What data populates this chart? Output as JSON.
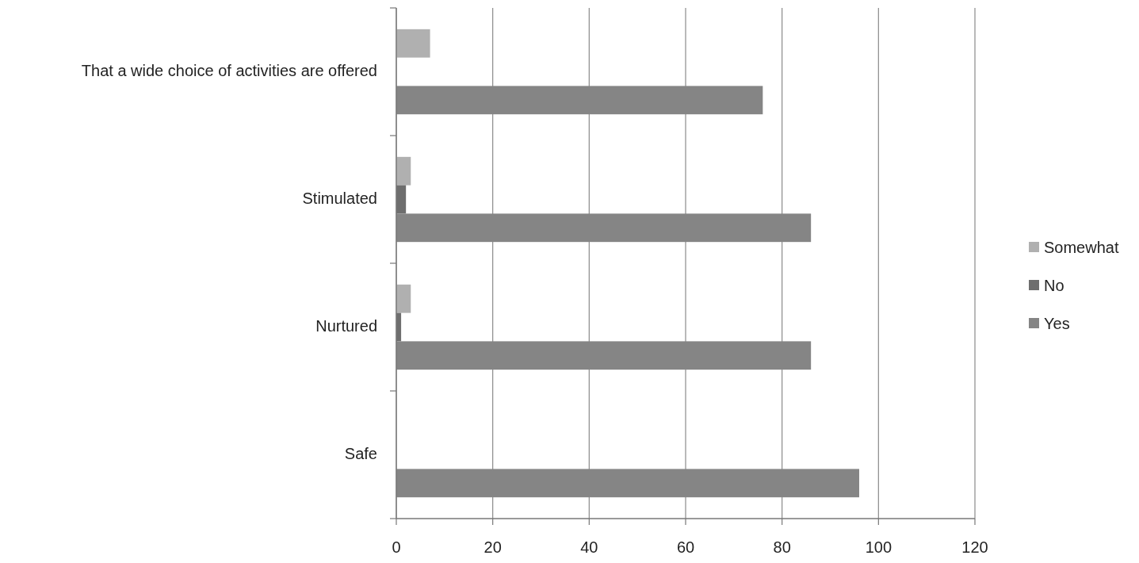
{
  "chart_data": {
    "type": "bar",
    "orientation": "horizontal",
    "categories": [
      "That a wide choice of activities are offered",
      "Stimulated",
      "Nurtured",
      "Safe"
    ],
    "series": [
      {
        "name": "Somewhat",
        "color": "#b0b0b0",
        "values": [
          7,
          3,
          3,
          null
        ]
      },
      {
        "name": "No",
        "color": "#6e6e6e",
        "values": [
          null,
          2,
          1,
          null
        ]
      },
      {
        "name": "Yes",
        "color": "#858585",
        "values": [
          76,
          86,
          86,
          96
        ]
      }
    ],
    "xlim": [
      0,
      120
    ],
    "xticks": [
      0,
      20,
      40,
      60,
      80,
      100,
      120
    ],
    "grid": "x",
    "legend": "right"
  }
}
